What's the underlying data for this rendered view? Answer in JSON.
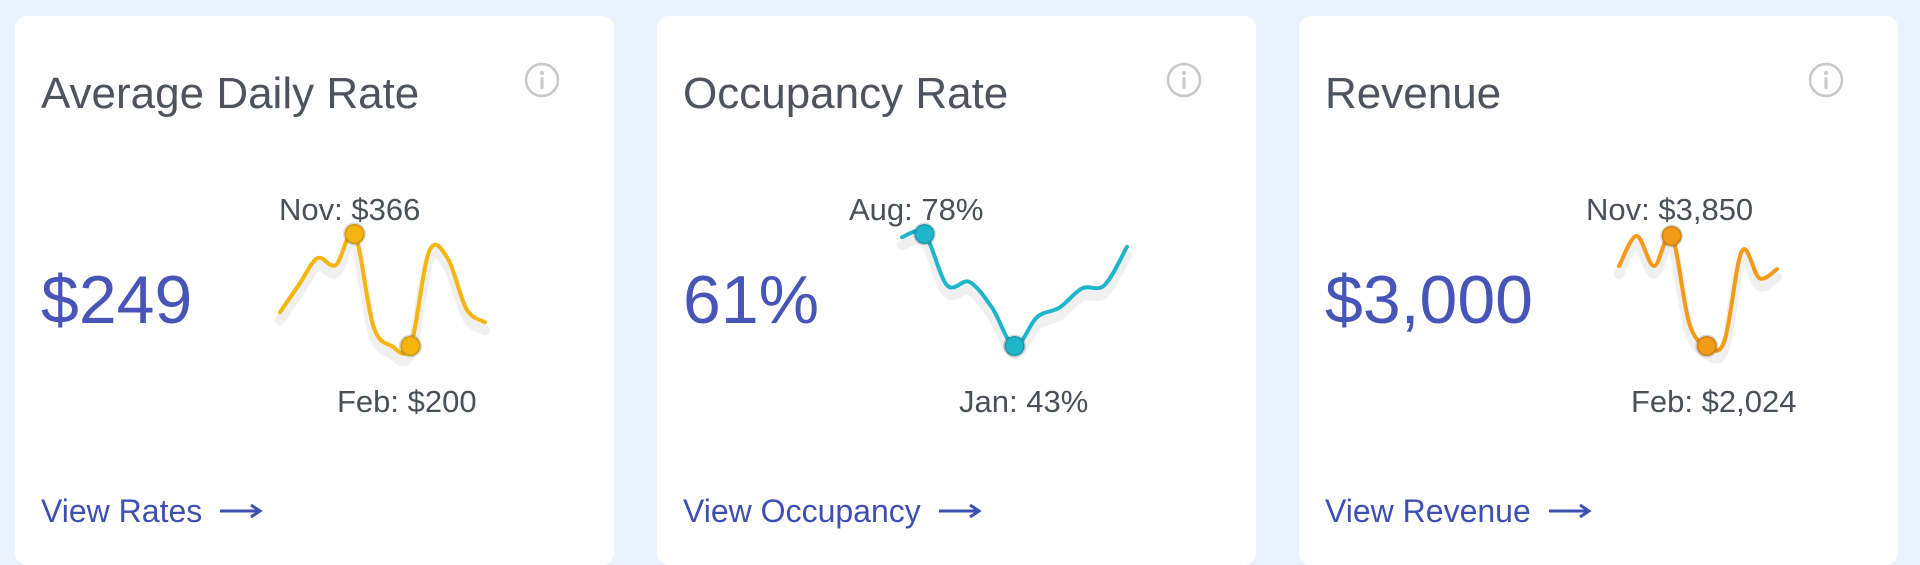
{
  "cards": [
    {
      "title": "Average Daily Rate",
      "value": "$249",
      "max_label": "Nov: $366",
      "min_label": "Feb: $200",
      "link_label": "View Rates",
      "color": "#f5b50f",
      "icon": "info-icon",
      "trend": [
        250,
        290,
        330,
        320,
        366,
        230,
        200,
        200,
        340,
        330,
        255,
        235
      ],
      "max_index": 4,
      "min_index": 7
    },
    {
      "title": "Occupancy Rate",
      "value": "61%",
      "max_label": "Aug: 78%",
      "min_label": "Jan: 43%",
      "link_label": "View Occupancy",
      "color": "#1fb6cc",
      "icon": "info-icon",
      "trend": [
        77,
        78,
        62,
        63,
        55,
        43,
        52,
        55,
        61,
        62,
        74
      ],
      "max_index": 1,
      "min_index": 5
    },
    {
      "title": "Revenue",
      "value": "$3,000",
      "max_label": "Nov: $3,850",
      "min_label": "Feb: $2,024",
      "link_label": "View Revenue",
      "color": "#f39a18",
      "icon": "info-icon",
      "trend": [
        3350,
        3850,
        3350,
        3850,
        2400,
        2024,
        2100,
        3600,
        3150,
        3300
      ],
      "max_index": 3,
      "min_index": 5
    }
  ]
}
